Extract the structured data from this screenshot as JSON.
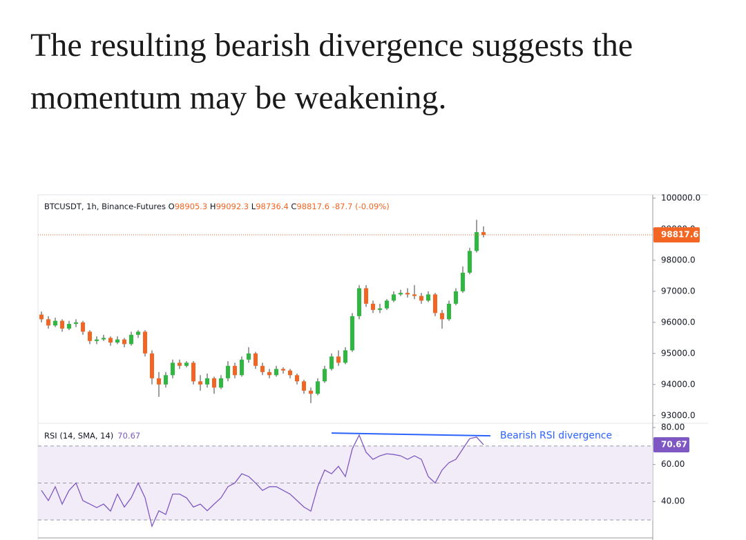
{
  "heading": "The resulting bearish divergence suggests the momentum may be weakening.",
  "chart_data": [
    {
      "type": "candlestick",
      "legend_title": "BTCUSDT, 1h, Binance-Futures",
      "ohlc_legend": [
        {
          "label": "O",
          "value": 98905.3
        },
        {
          "label": "H",
          "value": 99092.3
        },
        {
          "label": "L",
          "value": 98736.4
        },
        {
          "label": "C",
          "value": 98817.6
        }
      ],
      "change_label": "-87.7 (-0.09%)",
      "open": [
        96250,
        96100,
        95900,
        96050,
        95800,
        95950,
        96000,
        95700,
        95400,
        95450,
        95500,
        95350,
        95450,
        95300,
        95600,
        95700,
        95000,
        94200,
        94000,
        94300,
        94700,
        94600,
        94700,
        94100,
        94000,
        94200,
        93900,
        94200,
        94600,
        94300,
        94800,
        95000,
        94600,
        94400,
        94300,
        94500,
        94450,
        94300,
        94100,
        93800,
        93700,
        94100,
        94500,
        94900,
        94700,
        95100,
        96200,
        97100,
        96600,
        96400,
        96450,
        96700,
        96900,
        96950,
        96900,
        96850,
        96700,
        96900,
        96300,
        96100,
        96600,
        97000,
        97600,
        98300,
        98905.3
      ],
      "high": [
        96350,
        96200,
        96150,
        96100,
        96050,
        96100,
        96050,
        95750,
        95550,
        95600,
        95550,
        95550,
        95500,
        95700,
        95750,
        95750,
        95100,
        94400,
        94400,
        94800,
        94800,
        94750,
        94750,
        94300,
        94350,
        94250,
        94300,
        94750,
        94700,
        94900,
        95200,
        95050,
        94700,
        94500,
        94600,
        94550,
        94500,
        94350,
        94150,
        93900,
        94200,
        94600,
        95000,
        95100,
        95200,
        96300,
        97200,
        97200,
        96700,
        96600,
        96750,
        97000,
        97050,
        97100,
        97200,
        96950,
        97000,
        96950,
        96400,
        96700,
        97100,
        97800,
        98400,
        99300,
        99092.3
      ],
      "low": [
        96000,
        95800,
        95850,
        95700,
        95750,
        95850,
        95600,
        95300,
        95300,
        95400,
        95250,
        95300,
        95200,
        95250,
        95500,
        94900,
        94000,
        93600,
        93900,
        94200,
        94500,
        94550,
        94000,
        93800,
        93900,
        93700,
        93850,
        94100,
        94200,
        94250,
        94700,
        94500,
        94300,
        94200,
        94250,
        94350,
        94200,
        94000,
        93700,
        93400,
        93650,
        94050,
        94450,
        94600,
        94650,
        95050,
        96100,
        96500,
        96300,
        96300,
        96400,
        96650,
        96850,
        96800,
        96750,
        96600,
        96650,
        96200,
        95800,
        96050,
        96550,
        96950,
        97550,
        98250,
        98736.4
      ],
      "close": [
        96100,
        95900,
        96050,
        95800,
        95950,
        96000,
        95700,
        95400,
        95450,
        95500,
        95350,
        95450,
        95300,
        95600,
        95700,
        95000,
        94200,
        94000,
        94300,
        94700,
        94600,
        94700,
        94100,
        94000,
        94200,
        93900,
        94200,
        94600,
        94300,
        94800,
        95000,
        94600,
        94400,
        94300,
        94500,
        94450,
        94300,
        94100,
        93800,
        93700,
        94100,
        94500,
        94900,
        94700,
        95100,
        96200,
        97100,
        96600,
        96400,
        96450,
        96700,
        96900,
        96950,
        96900,
        96850,
        96700,
        96900,
        96300,
        96100,
        96600,
        97000,
        97600,
        98300,
        98905.3,
        98817.6
      ],
      "up_color": "#2eb83f",
      "down_color": "#f26522",
      "wick_color": "#3d3d3d",
      "last_price_line": true,
      "xlim": [
        -0.5,
        88.5
      ],
      "ylim": [
        92750,
        100110
      ],
      "yticks": [
        {
          "value": 93000,
          "label": "93000.0"
        },
        {
          "value": 94000,
          "label": "94000.0"
        },
        {
          "value": 95000,
          "label": "95000.0"
        },
        {
          "value": 96000,
          "label": "96000.0"
        },
        {
          "value": 97000,
          "label": "97000.0"
        },
        {
          "value": 98000,
          "label": "98000.0"
        },
        {
          "value": 99000,
          "label": "99000.0"
        },
        {
          "value": 100000,
          "label": "100000.0"
        }
      ]
    },
    {
      "type": "line",
      "title": "RSI (14, SMA, 14)",
      "values": [
        46,
        40.5,
        48,
        38.6,
        46,
        50,
        40.5,
        38.6,
        36.7,
        38.6,
        34.8,
        44,
        37,
        42,
        50,
        42,
        26.6,
        35,
        33,
        44,
        44,
        42,
        37,
        38.6,
        35,
        38.6,
        42,
        48,
        50,
        55,
        53.5,
        50,
        46,
        48,
        48,
        46,
        44,
        40.5,
        37,
        34.8,
        48,
        57,
        55,
        59,
        53.5,
        68.4,
        75.9,
        66.6,
        62.8,
        64.7,
        65.8,
        65.4,
        64.7,
        62.8,
        64.7,
        62.8,
        53.5,
        50,
        57,
        61,
        62.8,
        68.4,
        74,
        74.8,
        70.67
      ],
      "color": "#7e57c2",
      "band": [
        30,
        70
      ],
      "band_color": "#ede7f6",
      "guides": [
        30,
        50,
        70
      ],
      "annotation": {
        "text": "Bearish RSI divergence",
        "x": [
          42,
          65
        ],
        "values": [
          77,
          75.5
        ]
      },
      "annotation_color": "#2962ff",
      "xlim": [
        -0.5,
        88.5
      ],
      "ylim": [
        20.3,
        81.9
      ],
      "yticks": [
        {
          "value": 40,
          "label": "40.00"
        },
        {
          "value": 60,
          "label": "60.00"
        },
        {
          "value": 80,
          "label": "80.00"
        }
      ]
    }
  ]
}
